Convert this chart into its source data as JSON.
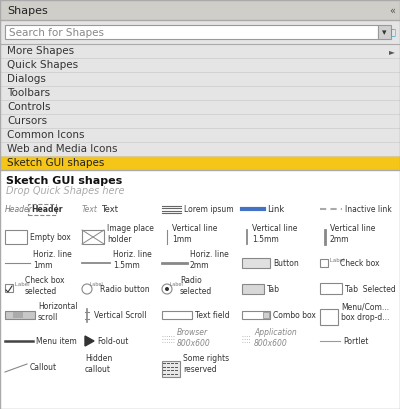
{
  "title": "Shapes",
  "bg_color": "#d0cec8",
  "panel_bg": "#e5e5e5",
  "white_bg": "#ffffff",
  "highlight_color": "#f5c518",
  "highlight_text": "Sketch GUI shapes",
  "menu_items": [
    "More Shapes",
    "Quick Shapes",
    "Dialogs",
    "Toolbars",
    "Controls",
    "Cursors",
    "Common Icons",
    "Web and Media Icons",
    "Sketch GUI shapes"
  ],
  "section_title": "Sketch GUI shapes",
  "section_subtitle": "Drop Quick Shapes here",
  "search_placeholder": "Search for Shapes",
  "text_dark": "#333333",
  "text_medium": "#555555",
  "text_light": "#999999",
  "border_color": "#bbbbbb",
  "sep_color": "#cccccc"
}
